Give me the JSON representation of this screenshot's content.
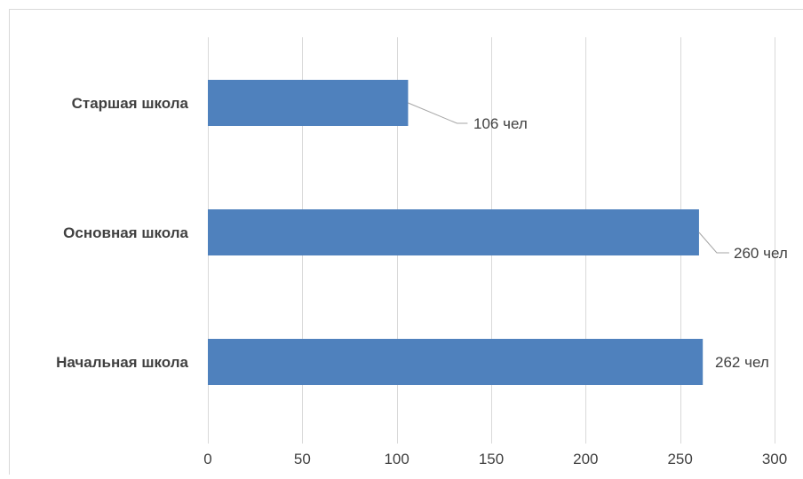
{
  "chart_data": {
    "type": "bar",
    "orientation": "horizontal",
    "categories": [
      "Начальная школа",
      "Основная школа",
      "Старшая школа"
    ],
    "values": [
      262,
      260,
      106
    ],
    "data_labels": [
      "262 чел",
      "260 чел",
      "106 чел"
    ],
    "xlim": [
      0,
      300
    ],
    "x_ticks": [
      0,
      50,
      100,
      150,
      200,
      250,
      300
    ],
    "tick_labels": [
      "0",
      "50",
      "100",
      "150",
      "200",
      "250",
      "300"
    ],
    "grid": true,
    "legend": "none",
    "bar_color": "#4F81BD",
    "grid_color": "#D9D9D9",
    "leader_color": "#A6A6A6"
  }
}
